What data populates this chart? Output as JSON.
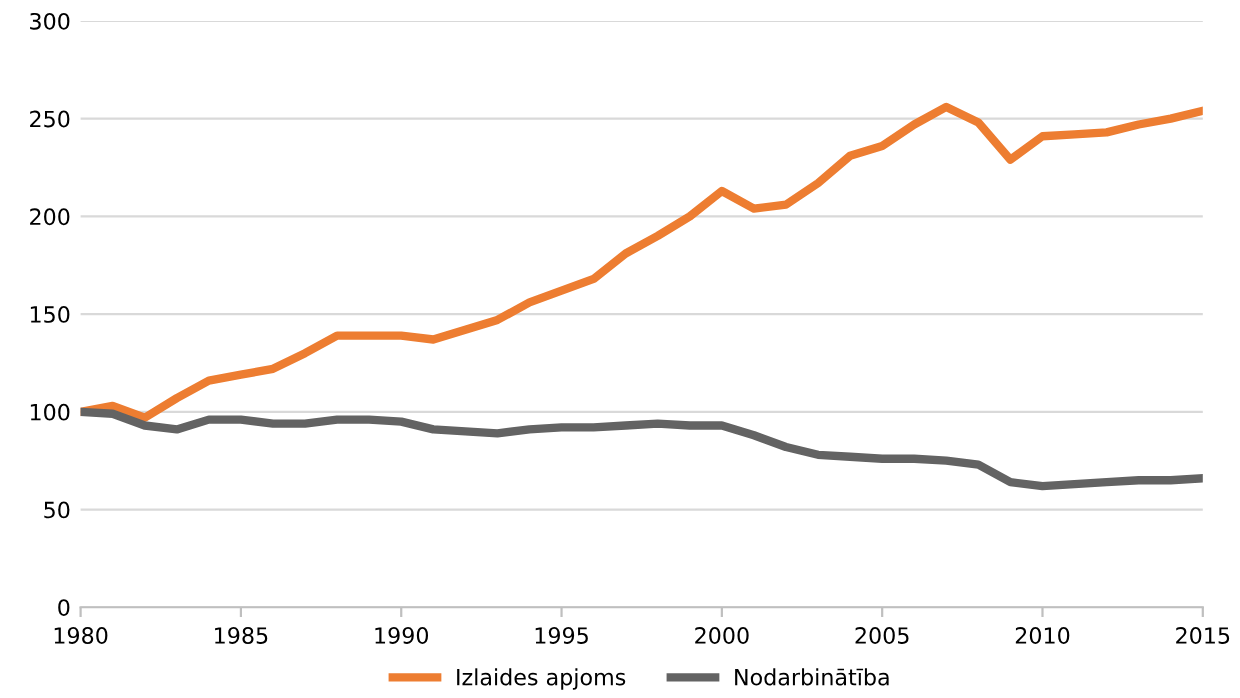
{
  "chart_data": {
    "type": "line",
    "x": [
      1980,
      1981,
      1982,
      1983,
      1984,
      1985,
      1986,
      1987,
      1988,
      1989,
      1990,
      1991,
      1992,
      1993,
      1994,
      1995,
      1996,
      1997,
      1998,
      1999,
      2000,
      2001,
      2002,
      2003,
      2004,
      2005,
      2006,
      2007,
      2008,
      2009,
      2010,
      2011,
      2012,
      2013,
      2014,
      2015
    ],
    "series": [
      {
        "name": "Izlaides apjoms",
        "color": "#ed7d31",
        "values": [
          100,
          103,
          97,
          107,
          116,
          119,
          122,
          130,
          139,
          139,
          139,
          137,
          142,
          147,
          156,
          162,
          168,
          181,
          190,
          200,
          213,
          204,
          206,
          217,
          231,
          236,
          247,
          256,
          248,
          229,
          241,
          242,
          243,
          247,
          250,
          254
        ]
      },
      {
        "name": "Nodarbinātība",
        "color": "#636363",
        "values": [
          100,
          99,
          93,
          91,
          96,
          96,
          94,
          94,
          96,
          96,
          95,
          91,
          90,
          89,
          91,
          92,
          92,
          93,
          94,
          93,
          93,
          88,
          82,
          78,
          77,
          76,
          76,
          75,
          73,
          64,
          62,
          63,
          64,
          65,
          65,
          66
        ]
      }
    ],
    "xlim": [
      1980,
      2015
    ],
    "xticks": [
      1980,
      1985,
      1990,
      1995,
      2000,
      2005,
      2010,
      2015
    ],
    "ylim": [
      0,
      300
    ],
    "yticks": [
      0,
      50,
      100,
      150,
      200,
      250,
      300
    ],
    "grid": "y",
    "legend": "bottom",
    "marker": "none",
    "line_style": "solid"
  }
}
